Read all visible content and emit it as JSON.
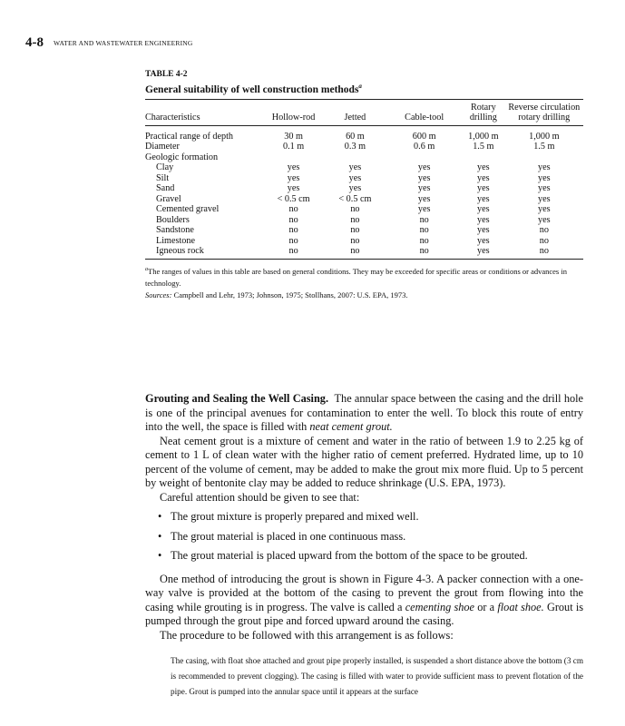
{
  "header": {
    "page_number": "4-8",
    "running_head": "WATER AND WASTEWATER ENGINEERING"
  },
  "table": {
    "label": "TABLE 4-2",
    "title": "General suitability of well construction methods",
    "title_footnote_mark": "a",
    "columns": [
      "Characteristics",
      "Hollow-rod",
      "Jetted",
      "Cable-tool",
      "Rotary drilling",
      "Reverse circulation rotary drilling"
    ],
    "rows": [
      [
        "Practical range of depth",
        "30 m",
        "60 m",
        "600 m",
        "1,000 m",
        "1,000 m"
      ],
      [
        "Diameter",
        "0.1 m",
        "0.3 m",
        "0.6 m",
        "1.5 m",
        "1.5 m"
      ]
    ],
    "group_label": "Geologic formation",
    "group_rows": [
      [
        "Clay",
        "yes",
        "yes",
        "yes",
        "yes",
        "yes"
      ],
      [
        "Silt",
        "yes",
        "yes",
        "yes",
        "yes",
        "yes"
      ],
      [
        "Sand",
        "yes",
        "yes",
        "yes",
        "yes",
        "yes"
      ],
      [
        "Gravel",
        "< 0.5 cm",
        "< 0.5 cm",
        "yes",
        "yes",
        "yes"
      ],
      [
        "Cemented gravel",
        "no",
        "no",
        "yes",
        "yes",
        "yes"
      ],
      [
        "Boulders",
        "no",
        "no",
        "no",
        "yes",
        "yes"
      ],
      [
        "Sandstone",
        "no",
        "no",
        "no",
        "yes",
        "no"
      ],
      [
        "Limestone",
        "no",
        "no",
        "no",
        "yes",
        "no"
      ],
      [
        "Igneous rock",
        "no",
        "no",
        "no",
        "yes",
        "no"
      ]
    ],
    "footnote": "The ranges of values in this table are based on general conditions. They may be exceeded for specific areas or conditions or advances in technology.",
    "sources_label": "Sources:",
    "sources": "Campbell and Lehr, 1973; Johnson, 1975; Stollhans, 2007: U.S. EPA, 1973."
  },
  "body": {
    "heading": "Grouting and Sealing the Well Casing.",
    "p1": "The annular space between the casing and the drill hole is one of the principal avenues for contamination to enter the well. To block this route of entry into the well, the space is filled with",
    "p1_em": "neat cement grout.",
    "p2": "Neat cement grout is a mixture of cement and water in the ratio of between 1.9 to 2.25 kg of cement to 1 L of clean water with the higher ratio of cement preferred. Hydrated lime, up to 10 percent of the volume of cement, may be added to make the grout mix more fluid. Up to 5 percent by weight of bentonite clay may be added to reduce shrinkage (U.S. EPA, 1973).",
    "p3": "Careful attention should be given to see that:",
    "bullets": [
      "The grout mixture is properly prepared and mixed well.",
      "The grout material is placed in one continuous mass.",
      "The grout material is placed upward from the bottom of the space to be grouted."
    ],
    "p4a": "One method of introducing the grout is shown in Figure 4-3. A packer connection with a one-way valve is provided at the bottom of the casing to prevent the grout from flowing into the casing while grouting is in progress. The valve is called a",
    "p4_em1": "cementing shoe",
    "p4_or": "or a",
    "p4_em2": "float shoe.",
    "p4b": "Grout is pumped through the grout pipe and forced upward around the casing.",
    "p5": "The procedure to be followed with this arrangement is as follows:",
    "extract": "The casing, with float shoe attached and grout pipe properly installed, is suspended a short distance above the bottom (3 cm is recommended to prevent clogging). The casing is filled with water to provide sufficient mass to prevent flotation of the pipe. Grout is pumped into the annular space until it appears at the surface"
  }
}
